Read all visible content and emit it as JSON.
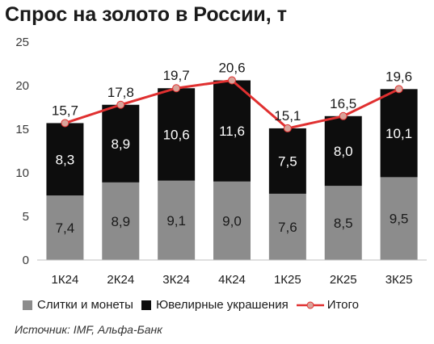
{
  "title": "Спрос на золото в России, т",
  "source": "Источник: IMF, Альфа-Банк",
  "legend": {
    "series0": "Слитки и монеты",
    "series1": "Ювелирные украшения",
    "total": "Итого"
  },
  "colors": {
    "series0": "#8c8c8c",
    "series1": "#0d0d0d",
    "total_line": "#e03030",
    "marker_fill": "#d9a39a"
  },
  "chart_data": {
    "type": "bar",
    "stacked": true,
    "categories": [
      "1К24",
      "2К24",
      "3К24",
      "4К24",
      "1К25",
      "2К25",
      "3К25"
    ],
    "series": [
      {
        "name": "Слитки и монеты",
        "values": [
          7.4,
          8.9,
          9.1,
          9.0,
          7.6,
          8.5,
          9.5
        ],
        "labels": [
          "7,4",
          "8,9",
          "9,1",
          "9,0",
          "7,6",
          "8,5",
          "9,5"
        ]
      },
      {
        "name": "Ювелирные украшения",
        "values": [
          8.3,
          8.9,
          10.6,
          11.6,
          7.5,
          8.0,
          10.1
        ],
        "labels": [
          "8,3",
          "8,9",
          "10,6",
          "11,6",
          "7,5",
          "8,0",
          "10,1"
        ]
      }
    ],
    "total": {
      "name": "Итого",
      "type": "line",
      "values": [
        15.7,
        17.8,
        19.7,
        20.6,
        15.1,
        16.5,
        19.6
      ],
      "labels": [
        "15,7",
        "17,8",
        "19,7",
        "20,6",
        "15,1",
        "16,5",
        "19,6"
      ]
    },
    "yticks": [
      "0",
      "5",
      "10",
      "15",
      "20",
      "25"
    ],
    "ylim": [
      0,
      25
    ],
    "grid": false,
    "legend_position": "bottom"
  }
}
